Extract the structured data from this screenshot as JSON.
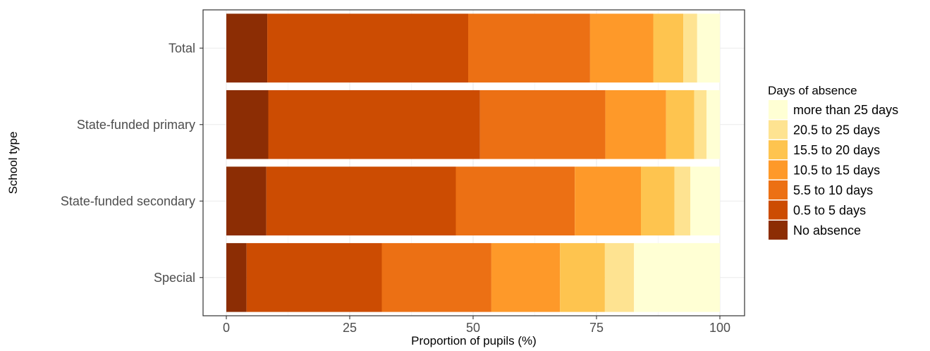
{
  "chart_data": {
    "type": "bar",
    "orientation": "horizontal",
    "stacked": true,
    "title": "",
    "xlabel": "Proportion of pupils (%)",
    "ylabel": "School type",
    "xlim": [
      0,
      100
    ],
    "xticks": [
      0,
      25,
      50,
      75,
      100
    ],
    "grid": true,
    "legend_position": "right",
    "legend_title": "Days of absence",
    "categories": [
      "Total",
      "State-funded primary",
      "State-funded secondary",
      "Special"
    ],
    "series": [
      {
        "name": "No absence",
        "color": "#8c2d04",
        "values": [
          8.3,
          8.5,
          8.1,
          4.1
        ]
      },
      {
        "name": "0.5 to 5 days",
        "color": "#cc4c02",
        "values": [
          40.7,
          42.9,
          38.4,
          27.4
        ]
      },
      {
        "name": "5.5 to 10 days",
        "color": "#ec7014",
        "values": [
          24.7,
          25.4,
          24.1,
          22.2
        ]
      },
      {
        "name": "10.5 to 15 days",
        "color": "#fe9929",
        "values": [
          12.8,
          12.3,
          13.4,
          13.9
        ]
      },
      {
        "name": "15.5 to 20 days",
        "color": "#fec44f",
        "values": [
          6.1,
          5.7,
          6.8,
          9.1
        ]
      },
      {
        "name": "20.5 to 25 days",
        "color": "#fee391",
        "values": [
          2.8,
          2.5,
          3.2,
          5.9
        ]
      },
      {
        "name": "more than 25 days",
        "color": "#ffffd4",
        "values": [
          4.6,
          2.7,
          6.0,
          17.4
        ]
      }
    ],
    "legend_order": [
      "more than 25 days",
      "20.5 to 25 days",
      "15.5 to 20 days",
      "10.5 to 15 days",
      "5.5 to 10 days",
      "0.5 to 5 days",
      "No absence"
    ]
  }
}
